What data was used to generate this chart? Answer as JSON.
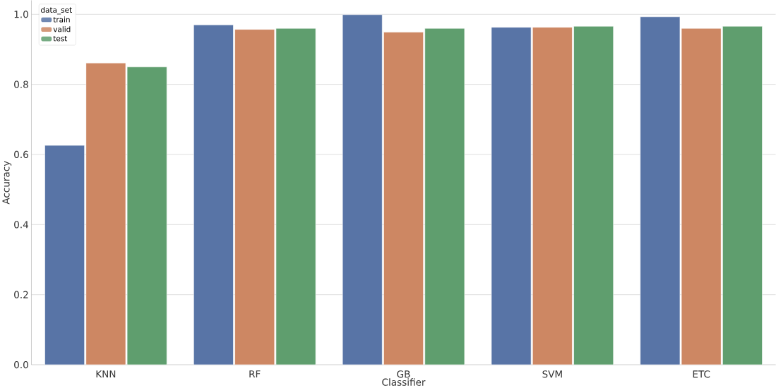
{
  "chart_data": {
    "type": "bar",
    "xlabel": "Classifier",
    "ylabel": "Accuracy",
    "legend_title": "data_set",
    "categories": [
      "KNN",
      "RF",
      "GB",
      "SVM",
      "ETC"
    ],
    "series": [
      {
        "name": "train",
        "color": "#5874a6",
        "values": [
          0.626,
          0.97,
          0.999,
          0.963,
          0.993
        ]
      },
      {
        "name": "valid",
        "color": "#cd8763",
        "values": [
          0.861,
          0.957,
          0.949,
          0.963,
          0.96
        ]
      },
      {
        "name": "test",
        "color": "#5f9e6e",
        "values": [
          0.85,
          0.96,
          0.96,
          0.966,
          0.966
        ]
      }
    ],
    "ylim": [
      0,
      1.04
    ],
    "yticks": [
      {
        "value": 0,
        "label": "0.0"
      },
      0.2,
      0.4,
      0.6,
      0.8,
      {
        "value": 1,
        "label": "1.0"
      }
    ],
    "grid": "y",
    "legend": "top left"
  }
}
